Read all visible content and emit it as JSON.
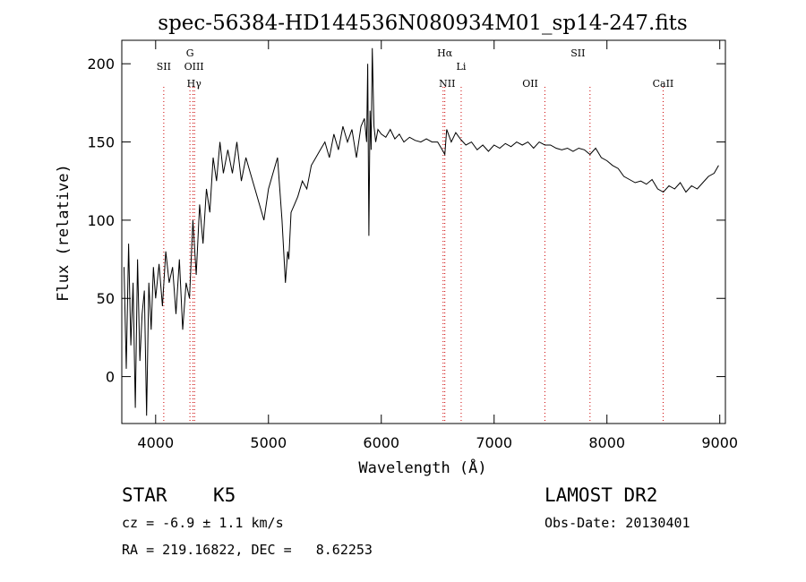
{
  "chart_data": {
    "type": "line",
    "title": "spec-56384-HD144536N080934M01_sp14-247.fits",
    "xlabel": "Wavelength (Å)",
    "ylabel": "Flux (relative)",
    "xlim": [
      3700,
      9050
    ],
    "ylim": [
      -30,
      215
    ],
    "x_ticks": [
      4000,
      5000,
      6000,
      7000,
      8000,
      9000
    ],
    "y_ticks": [
      0,
      50,
      100,
      150,
      200
    ],
    "grid": false,
    "series": [
      {
        "x": [
          3720,
          3740,
          3760,
          3780,
          3800,
          3820,
          3840,
          3860,
          3880,
          3900,
          3920,
          3940,
          3960,
          3980,
          4000,
          4030,
          4060,
          4090,
          4120,
          4150,
          4180,
          4210,
          4240,
          4270,
          4300,
          4330,
          4360,
          4390,
          4420,
          4450,
          4480,
          4510,
          4540,
          4570,
          4600,
          4640,
          4680,
          4720,
          4760,
          4800,
          4840,
          4880,
          4920,
          4960,
          5000,
          5040,
          5080,
          5120,
          5150,
          5170,
          5180,
          5200,
          5230,
          5260,
          5300,
          5340,
          5380,
          5420,
          5460,
          5500,
          5540,
          5580,
          5620,
          5660,
          5700,
          5740,
          5780,
          5820,
          5850,
          5870,
          5880,
          5890,
          5900,
          5910,
          5920,
          5935,
          5950,
          5970,
          6000,
          6040,
          6080,
          6120,
          6160,
          6200,
          6250,
          6300,
          6350,
          6400,
          6450,
          6500,
          6540,
          6563,
          6580,
          6620,
          6660,
          6700,
          6750,
          6800,
          6850,
          6900,
          6950,
          7000,
          7050,
          7100,
          7150,
          7200,
          7250,
          7300,
          7350,
          7400,
          7450,
          7500,
          7550,
          7600,
          7650,
          7700,
          7750,
          7800,
          7850,
          7900,
          7950,
          8000,
          8050,
          8100,
          8150,
          8200,
          8250,
          8300,
          8350,
          8400,
          8450,
          8500,
          8550,
          8600,
          8650,
          8700,
          8750,
          8800,
          8850,
          8900,
          8950,
          8990
        ],
        "y": [
          70,
          5,
          85,
          20,
          60,
          -20,
          75,
          10,
          40,
          55,
          -25,
          60,
          30,
          70,
          50,
          72,
          45,
          80,
          60,
          70,
          40,
          75,
          30,
          60,
          50,
          100,
          65,
          110,
          85,
          120,
          105,
          140,
          125,
          150,
          130,
          145,
          130,
          150,
          125,
          140,
          130,
          120,
          110,
          100,
          120,
          130,
          140,
          100,
          60,
          80,
          75,
          105,
          110,
          115,
          125,
          120,
          135,
          140,
          145,
          150,
          140,
          155,
          145,
          160,
          150,
          158,
          140,
          160,
          165,
          150,
          200,
          90,
          170,
          145,
          210,
          160,
          150,
          158,
          155,
          153,
          158,
          152,
          155,
          150,
          153,
          151,
          150,
          152,
          150,
          150,
          145,
          142,
          158,
          150,
          156,
          152,
          148,
          150,
          145,
          148,
          144,
          148,
          146,
          149,
          147,
          150,
          148,
          150,
          146,
          150,
          148,
          148,
          146,
          145,
          146,
          144,
          146,
          145,
          142,
          146,
          140,
          138,
          135,
          133,
          128,
          126,
          124,
          125,
          123,
          126,
          120,
          118,
          122,
          120,
          124,
          118,
          122,
          120,
          124,
          128,
          130,
          135
        ]
      }
    ],
    "line_annotations": [
      {
        "label": "SII",
        "x": 4072,
        "row": 2
      },
      {
        "label": "G",
        "x": 4304,
        "row": 1
      },
      {
        "label": "OIII",
        "x": 4340,
        "row": 2
      },
      {
        "label": "Hγ",
        "x": 4341,
        "row": 3
      },
      {
        "label": "Hα",
        "x": 6563,
        "row": 1
      },
      {
        "label": "Li",
        "x": 6708,
        "row": 2
      },
      {
        "label": "NII",
        "x": 6584,
        "row": 3
      },
      {
        "label": "OII",
        "x": 7320,
        "row": 3
      },
      {
        "label": "SII",
        "x": 7743,
        "row": 1
      },
      {
        "label": "CaII",
        "x": 8498,
        "row": 3
      }
    ],
    "marker_lines_x": [
      4072,
      4304,
      4330,
      4345,
      6548,
      6563,
      6708,
      7450,
      7850,
      8498
    ],
    "colors": {
      "spectrum": "#000000",
      "marker_line": "#cc0000",
      "axes": "#000000"
    }
  },
  "info": {
    "object_class": "STAR",
    "subclass": "K5",
    "survey": "LAMOST DR2",
    "cz": "cz = -6.9 ± 1.1 km/s",
    "obs_date": "Obs-Date: 20130401",
    "coords": "RA = 219.16822, DEC =   8.62253"
  }
}
